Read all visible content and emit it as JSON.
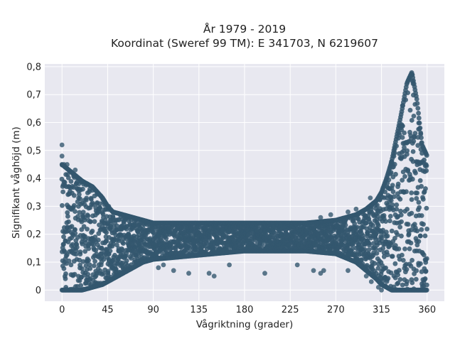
{
  "chart_data": {
    "type": "scatter",
    "title": "År 1979 - 2019",
    "subtitle": "Koordinat (Sweref 99 TM): E 341703, N 6219607",
    "xlabel": "Vågriktning (grader)",
    "ylabel": "Signifikant våghöjd (m)",
    "xlim": [
      -17,
      377
    ],
    "ylim": [
      -0.04,
      0.81
    ],
    "x_ticks": [
      0,
      45,
      90,
      135,
      180,
      225,
      270,
      315,
      360
    ],
    "x_tick_labels": [
      "0",
      "45",
      "90",
      "135",
      "180",
      "225",
      "270",
      "315",
      "360"
    ],
    "y_ticks": [
      0,
      0.1,
      0.2,
      0.3,
      0.4,
      0.5,
      0.6,
      0.7,
      0.8
    ],
    "y_tick_labels": [
      "0",
      "0,1",
      "0,2",
      "0,3",
      "0,4",
      "0,5",
      "0,6",
      "0,7",
      "0,8"
    ],
    "grid": true,
    "marker_color": "#34576f",
    "background_color": "#e8e8f0",
    "envelope_x": [
      0,
      10,
      20,
      30,
      40,
      45,
      50,
      60,
      70,
      80,
      90,
      120,
      150,
      180,
      210,
      240,
      270,
      290,
      300,
      310,
      315,
      320,
      325,
      330,
      335,
      340,
      345,
      350,
      355,
      360
    ],
    "envelope_upper": [
      0.45,
      0.42,
      0.39,
      0.37,
      0.33,
      0.3,
      0.28,
      0.27,
      0.26,
      0.25,
      0.24,
      0.24,
      0.24,
      0.24,
      0.24,
      0.24,
      0.25,
      0.27,
      0.29,
      0.32,
      0.35,
      0.4,
      0.46,
      0.55,
      0.64,
      0.74,
      0.78,
      0.68,
      0.52,
      0.48
    ],
    "envelope_lower": [
      0.0,
      0.0,
      0.0,
      0.01,
      0.02,
      0.03,
      0.04,
      0.06,
      0.08,
      0.1,
      0.11,
      0.12,
      0.13,
      0.14,
      0.14,
      0.14,
      0.13,
      0.1,
      0.07,
      0.04,
      0.02,
      0.01,
      0.0,
      0.0,
      0.0,
      0.0,
      0.0,
      0.0,
      0.0,
      0.0
    ],
    "outliers": [
      {
        "x": 0,
        "y": 0.52
      },
      {
        "x": 0,
        "y": 0.48
      },
      {
        "x": 2,
        "y": 0.45
      },
      {
        "x": 5,
        "y": 0.45
      },
      {
        "x": 13,
        "y": 0.43
      },
      {
        "x": 18,
        "y": 0.39
      },
      {
        "x": 46,
        "y": 0.3
      },
      {
        "x": 30,
        "y": 0.37
      },
      {
        "x": 95,
        "y": 0.08
      },
      {
        "x": 100,
        "y": 0.09
      },
      {
        "x": 110,
        "y": 0.07
      },
      {
        "x": 125,
        "y": 0.06
      },
      {
        "x": 145,
        "y": 0.06
      },
      {
        "x": 150,
        "y": 0.05
      },
      {
        "x": 165,
        "y": 0.09
      },
      {
        "x": 200,
        "y": 0.06
      },
      {
        "x": 232,
        "y": 0.09
      },
      {
        "x": 248,
        "y": 0.07
      },
      {
        "x": 255,
        "y": 0.06
      },
      {
        "x": 258,
        "y": 0.07
      },
      {
        "x": 282,
        "y": 0.07
      },
      {
        "x": 295,
        "y": 0.09
      },
      {
        "x": 300,
        "y": 0.05
      },
      {
        "x": 305,
        "y": 0.03
      },
      {
        "x": 312,
        "y": 0.01
      },
      {
        "x": 315,
        "y": 0.0
      },
      {
        "x": 255,
        "y": 0.26
      },
      {
        "x": 265,
        "y": 0.27
      },
      {
        "x": 282,
        "y": 0.28
      },
      {
        "x": 290,
        "y": 0.29
      },
      {
        "x": 304,
        "y": 0.33
      },
      {
        "x": 326,
        "y": 0.44
      }
    ]
  }
}
